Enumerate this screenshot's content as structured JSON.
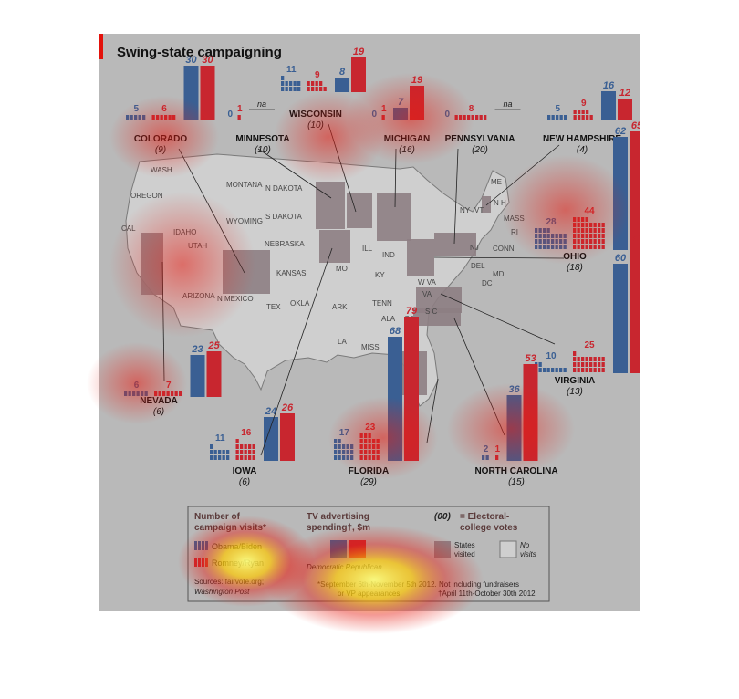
{
  "title": "Swing-state campaigning",
  "colors": {
    "obama": "#3a5f93",
    "romney": "#c8262f",
    "visited": "#8d7e83",
    "map_bg": "#cfcfcf",
    "frame": "#b9b9b9"
  },
  "map_labels": [
    "WASH",
    "OREGON",
    "CAL",
    "IDAHO",
    "UTAH",
    "ARIZONA",
    "MONTANA",
    "WYOMING",
    "N DAKOTA",
    "S DAKOTA",
    "NEBRASKA",
    "KANSAS",
    "N MEXICO",
    "TEX",
    "OKLA",
    "MO",
    "ARK",
    "LA",
    "MISS",
    "ALA",
    "GA",
    "S C",
    "TENN",
    "KY",
    "ILL",
    "IND",
    "W VA",
    "VA",
    "DEL",
    "MD",
    "DC",
    "NJ",
    "CONN",
    "RI",
    "MASS",
    "VT",
    "NY",
    "ME",
    "N H"
  ],
  "chart_data": {
    "type": "bar",
    "title": "Swing-state campaigning",
    "series": [
      {
        "name": "Obama/Biden",
        "metric": "campaign visits"
      },
      {
        "name": "Romney/Ryan",
        "metric": "campaign visits"
      },
      {
        "name": "Democratic",
        "metric": "TV advertising spending $m"
      },
      {
        "name": "Republican",
        "metric": "TV advertising spending $m"
      }
    ],
    "states": [
      {
        "name": "COLORADO",
        "ev": "(9)",
        "visits_obama": 5,
        "visits_romney": 6,
        "tv_dem": "30",
        "tv_rep": "30"
      },
      {
        "name": "MINNESOTA",
        "ev": "(10)",
        "visits_obama": 0,
        "visits_romney": 1,
        "tv": "na"
      },
      {
        "name": "WISCONSIN",
        "ev": "(10)",
        "visits_obama": 11,
        "visits_romney": 9,
        "tv_dem": "8",
        "tv_rep": "19"
      },
      {
        "name": "MICHIGAN",
        "ev": "(16)",
        "visits_obama": 0,
        "visits_romney": 1,
        "tv_dem": "7",
        "tv_rep": "19"
      },
      {
        "name": "PENNSYLVANIA",
        "ev": "(20)",
        "visits_obama": 0,
        "visits_romney": 8,
        "tv": "na"
      },
      {
        "name": "NEW HAMPSHIRE",
        "ev": "(4)",
        "visits_obama": 5,
        "visits_romney": 9,
        "tv_dem": "16",
        "tv_rep": "12"
      },
      {
        "name": "OHIO",
        "ev": "(18)",
        "visits_obama": 28,
        "visits_romney": 44,
        "tv_dem": "62",
        "tv_rep": "65"
      },
      {
        "name": "VIRGINIA",
        "ev": "(13)",
        "visits_obama": 10,
        "visits_romney": 25,
        "tv_dem": "60",
        "tv_rep": "71"
      },
      {
        "name": "NEVADA",
        "ev": "(6)",
        "visits_obama": 6,
        "visits_romney": 7,
        "tv_dem": "23",
        "tv_rep": "25"
      },
      {
        "name": "IOWA",
        "ev": "(6)",
        "visits_obama": 11,
        "visits_romney": 16,
        "tv_dem": "24",
        "tv_rep": "26"
      },
      {
        "name": "FLORIDA",
        "ev": "(29)",
        "visits_obama": 17,
        "visits_romney": 23,
        "tv_dem": "68",
        "tv_rep": "79"
      },
      {
        "name": "NORTH CAROLINA",
        "ev": "(15)",
        "visits_obama": 2,
        "visits_romney": 1,
        "tv_dem": "36",
        "tv_rep": "53"
      }
    ]
  },
  "legend": {
    "visits_title_1": "Number of",
    "visits_title_2": "campaign visits*",
    "obama": "Obama/Biden",
    "romney": "Romney/Ryan",
    "tv_title_1": "TV advertising",
    "tv_title_2": "spending†, $m",
    "tv_parties": "Democratic    Republican",
    "ev_key": "(00)",
    "ev_text_1": "= Electoral-",
    "ev_text_2": "college votes",
    "visited_1": "States",
    "visited_2": "visited",
    "novisit_1": "No",
    "novisit_2": "visits",
    "sources_1": "Sources: fairvote.org;",
    "sources_2": "Washington Post",
    "footnote_1": "*September 6th-November 5th 2012. Not including fundraisers",
    "footnote_2": "or VP appearances",
    "footnote_3": "†April 11th-October 30th 2012"
  }
}
